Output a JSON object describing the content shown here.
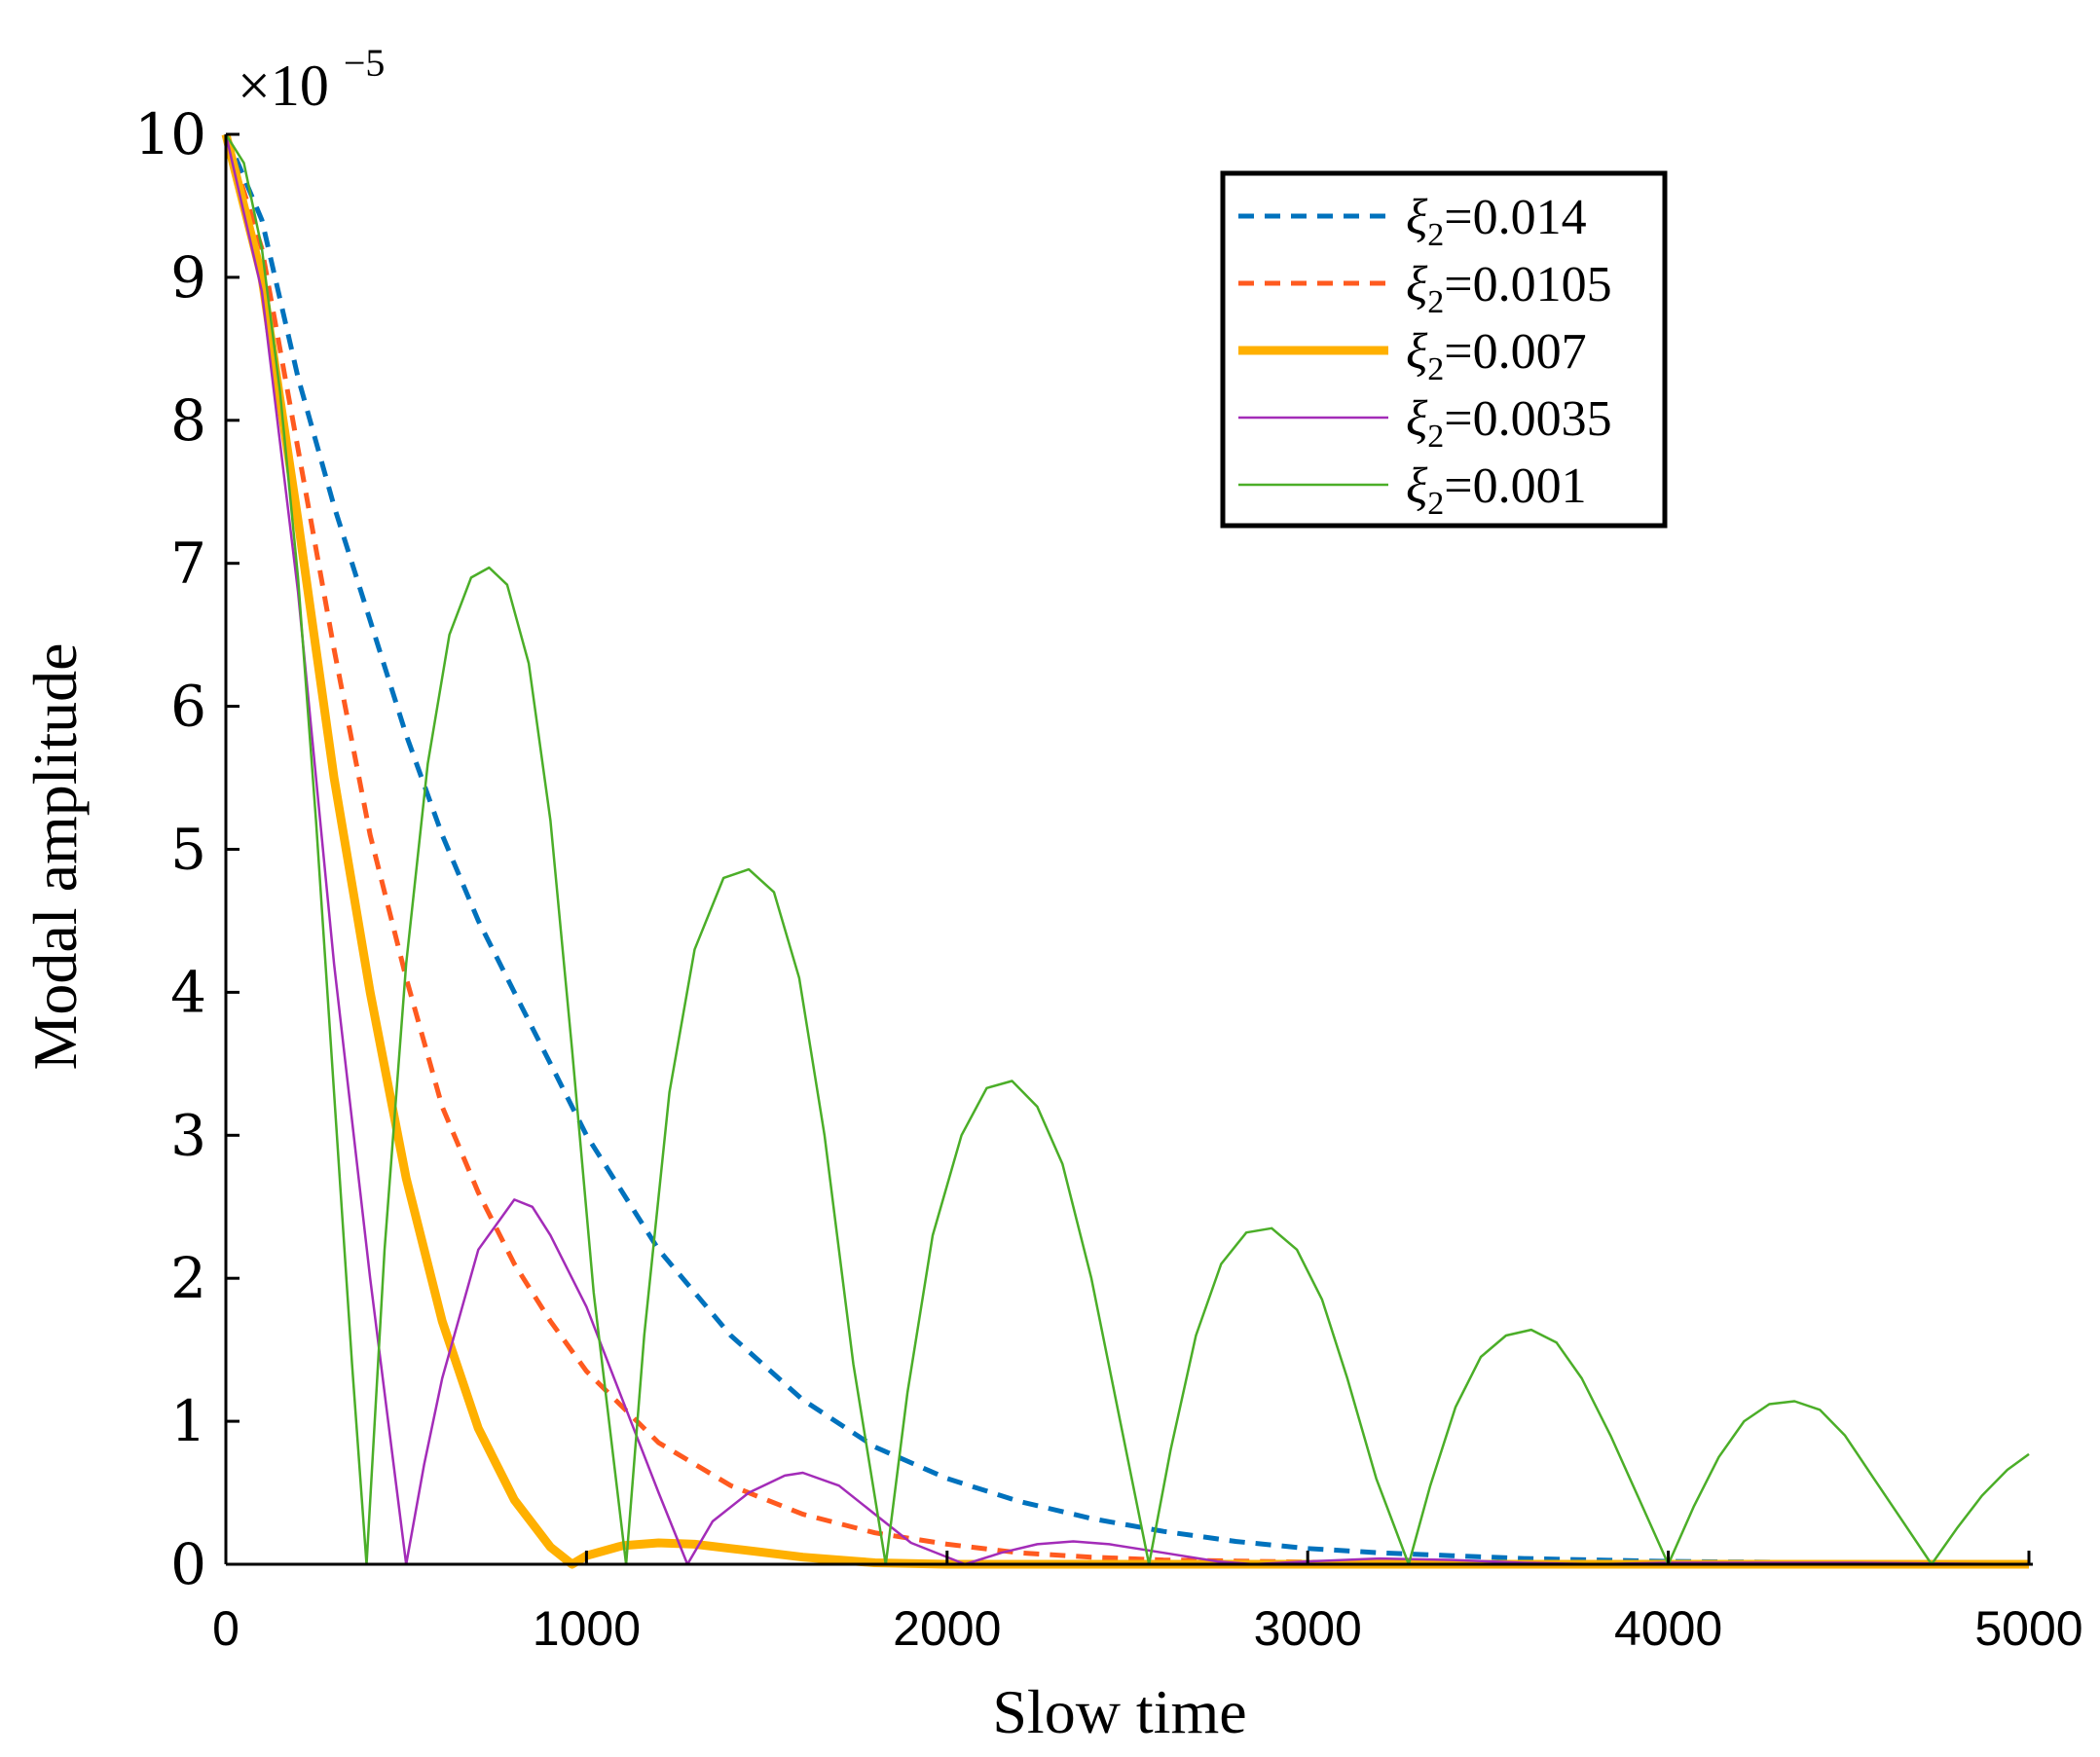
{
  "chart_data": {
    "type": "line",
    "title": "",
    "xlabel": "Slow time",
    "ylabel": "Modal amplitude",
    "y_multiplier": {
      "base": "×10",
      "exponent": "−5"
    },
    "xlim": [
      0,
      5000
    ],
    "ylim": [
      0,
      10
    ],
    "xticks": [
      0,
      1000,
      2000,
      3000,
      4000,
      5000
    ],
    "yticks": [
      0,
      1,
      2,
      3,
      4,
      5,
      6,
      7,
      8,
      9,
      10
    ],
    "grid": false,
    "legend_position": "top-right",
    "series": [
      {
        "name": "ξ2=0.014",
        "legend_symbol": "ξ",
        "legend_subscript": "2",
        "legend_value": "=0.014",
        "color": "#0072BD",
        "style": "dashed",
        "points": [
          [
            0,
            10
          ],
          [
            100,
            9.4
          ],
          [
            200,
            8.3
          ],
          [
            300,
            7.4
          ],
          [
            400,
            6.6
          ],
          [
            500,
            5.8
          ],
          [
            600,
            5.1
          ],
          [
            700,
            4.5
          ],
          [
            800,
            4.0
          ],
          [
            900,
            3.5
          ],
          [
            1000,
            3.0
          ],
          [
            1200,
            2.2
          ],
          [
            1400,
            1.6
          ],
          [
            1600,
            1.15
          ],
          [
            1800,
            0.82
          ],
          [
            2000,
            0.6
          ],
          [
            2200,
            0.44
          ],
          [
            2400,
            0.32
          ],
          [
            2600,
            0.23
          ],
          [
            2800,
            0.16
          ],
          [
            3000,
            0.11
          ],
          [
            3200,
            0.08
          ],
          [
            3400,
            0.06
          ],
          [
            3600,
            0.04
          ],
          [
            3800,
            0.03
          ],
          [
            4000,
            0.02
          ],
          [
            4500,
            0.01
          ],
          [
            5000,
            0.005
          ]
        ]
      },
      {
        "name": "ξ2=0.0105",
        "legend_symbol": "ξ",
        "legend_subscript": "2",
        "legend_value": "=0.0105",
        "color": "#FF5A1F",
        "style": "dashed",
        "points": [
          [
            0,
            10
          ],
          [
            100,
            9.2
          ],
          [
            200,
            7.8
          ],
          [
            300,
            6.4
          ],
          [
            400,
            5.1
          ],
          [
            500,
            4.1
          ],
          [
            600,
            3.2
          ],
          [
            700,
            2.6
          ],
          [
            800,
            2.1
          ],
          [
            900,
            1.7
          ],
          [
            1000,
            1.35
          ],
          [
            1200,
            0.85
          ],
          [
            1400,
            0.55
          ],
          [
            1600,
            0.35
          ],
          [
            1800,
            0.22
          ],
          [
            2000,
            0.14
          ],
          [
            2200,
            0.08
          ],
          [
            2400,
            0.05
          ],
          [
            2600,
            0.03
          ],
          [
            3000,
            0.015
          ],
          [
            3500,
            0.005
          ],
          [
            4000,
            0.002
          ],
          [
            5000,
            0.0
          ]
        ]
      },
      {
        "name": "ξ2=0.007",
        "legend_symbol": "ξ",
        "legend_subscript": "2",
        "legend_value": "=0.007",
        "color": "#FFB000",
        "style": "thick",
        "points": [
          [
            0,
            10
          ],
          [
            100,
            9.0
          ],
          [
            200,
            7.3
          ],
          [
            300,
            5.5
          ],
          [
            400,
            4.0
          ],
          [
            500,
            2.7
          ],
          [
            600,
            1.7
          ],
          [
            700,
            0.95
          ],
          [
            800,
            0.45
          ],
          [
            900,
            0.12
          ],
          [
            960,
            0.0
          ],
          [
            1000,
            0.06
          ],
          [
            1100,
            0.13
          ],
          [
            1200,
            0.15
          ],
          [
            1300,
            0.14
          ],
          [
            1400,
            0.11
          ],
          [
            1500,
            0.08
          ],
          [
            1600,
            0.05
          ],
          [
            1700,
            0.03
          ],
          [
            1800,
            0.01
          ],
          [
            2000,
            0.0
          ],
          [
            2500,
            0.0
          ],
          [
            5000,
            0.0
          ]
        ]
      },
      {
        "name": "ξ2=0.0035",
        "legend_symbol": "ξ",
        "legend_subscript": "2",
        "legend_value": "=0.0035",
        "color": "#A32CB8",
        "style": "thin",
        "points": [
          [
            0,
            10
          ],
          [
            100,
            8.9
          ],
          [
            200,
            6.8
          ],
          [
            300,
            4.2
          ],
          [
            400,
            2.0
          ],
          [
            450,
            1.0
          ],
          [
            500,
            0.0
          ],
          [
            550,
            0.7
          ],
          [
            600,
            1.3
          ],
          [
            700,
            2.2
          ],
          [
            800,
            2.55
          ],
          [
            850,
            2.5
          ],
          [
            900,
            2.3
          ],
          [
            1000,
            1.8
          ],
          [
            1100,
            1.15
          ],
          [
            1200,
            0.5
          ],
          [
            1280,
            0.0
          ],
          [
            1350,
            0.3
          ],
          [
            1450,
            0.5
          ],
          [
            1550,
            0.62
          ],
          [
            1600,
            0.64
          ],
          [
            1700,
            0.55
          ],
          [
            1800,
            0.35
          ],
          [
            1900,
            0.15
          ],
          [
            2050,
            0.0
          ],
          [
            2150,
            0.08
          ],
          [
            2250,
            0.14
          ],
          [
            2350,
            0.16
          ],
          [
            2450,
            0.14
          ],
          [
            2600,
            0.08
          ],
          [
            2750,
            0.02
          ],
          [
            2850,
            0.0
          ],
          [
            3000,
            0.02
          ],
          [
            3200,
            0.04
          ],
          [
            3400,
            0.03
          ],
          [
            3600,
            0.01
          ],
          [
            3800,
            0.0
          ],
          [
            4000,
            0.01
          ],
          [
            4500,
            0.01
          ],
          [
            5000,
            0.0
          ]
        ]
      },
      {
        "name": "ξ2=0.001",
        "legend_symbol": "ξ",
        "legend_subscript": "2",
        "legend_value": "=0.001",
        "color": "#4BAE28",
        "style": "thin",
        "points": [
          [
            0,
            10
          ],
          [
            50,
            9.8
          ],
          [
            100,
            9.2
          ],
          [
            150,
            8.2
          ],
          [
            200,
            6.9
          ],
          [
            250,
            5.2
          ],
          [
            300,
            3.3
          ],
          [
            350,
            1.4
          ],
          [
            390,
            0.0
          ],
          [
            440,
            2.2
          ],
          [
            500,
            4.2
          ],
          [
            560,
            5.6
          ],
          [
            620,
            6.5
          ],
          [
            680,
            6.9
          ],
          [
            730,
            6.97
          ],
          [
            780,
            6.85
          ],
          [
            840,
            6.3
          ],
          [
            900,
            5.2
          ],
          [
            960,
            3.6
          ],
          [
            1020,
            1.9
          ],
          [
            1110,
            0.0
          ],
          [
            1160,
            1.6
          ],
          [
            1230,
            3.3
          ],
          [
            1300,
            4.3
          ],
          [
            1380,
            4.8
          ],
          [
            1450,
            4.86
          ],
          [
            1520,
            4.7
          ],
          [
            1590,
            4.1
          ],
          [
            1660,
            3.0
          ],
          [
            1740,
            1.4
          ],
          [
            1830,
            0.0
          ],
          [
            1890,
            1.2
          ],
          [
            1960,
            2.3
          ],
          [
            2040,
            3.0
          ],
          [
            2110,
            3.33
          ],
          [
            2180,
            3.38
          ],
          [
            2250,
            3.2
          ],
          [
            2320,
            2.8
          ],
          [
            2400,
            2.0
          ],
          [
            2480,
            1.0
          ],
          [
            2560,
            0.0
          ],
          [
            2620,
            0.8
          ],
          [
            2690,
            1.6
          ],
          [
            2760,
            2.1
          ],
          [
            2830,
            2.32
          ],
          [
            2900,
            2.35
          ],
          [
            2970,
            2.2
          ],
          [
            3040,
            1.85
          ],
          [
            3110,
            1.3
          ],
          [
            3190,
            0.6
          ],
          [
            3280,
            0.0
          ],
          [
            3340,
            0.55
          ],
          [
            3410,
            1.1
          ],
          [
            3480,
            1.45
          ],
          [
            3550,
            1.6
          ],
          [
            3620,
            1.64
          ],
          [
            3690,
            1.55
          ],
          [
            3760,
            1.3
          ],
          [
            3840,
            0.9
          ],
          [
            3920,
            0.45
          ],
          [
            4000,
            0.0
          ],
          [
            4070,
            0.4
          ],
          [
            4140,
            0.75
          ],
          [
            4210,
            1.0
          ],
          [
            4280,
            1.12
          ],
          [
            4350,
            1.14
          ],
          [
            4420,
            1.08
          ],
          [
            4490,
            0.9
          ],
          [
            4570,
            0.6
          ],
          [
            4650,
            0.3
          ],
          [
            4730,
            0.0
          ],
          [
            4800,
            0.25
          ],
          [
            4870,
            0.48
          ],
          [
            4940,
            0.66
          ],
          [
            5000,
            0.77
          ]
        ]
      }
    ]
  }
}
